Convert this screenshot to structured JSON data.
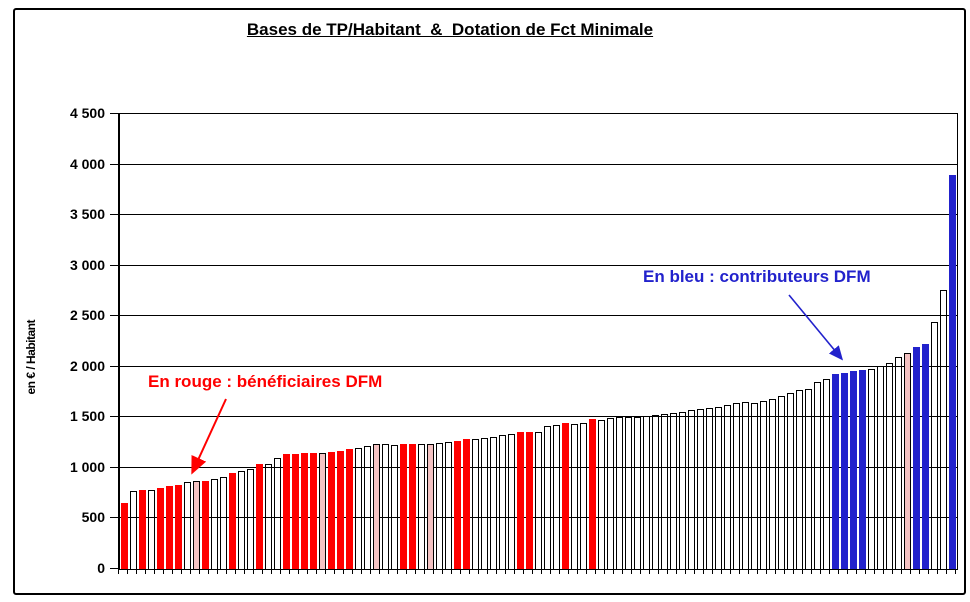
{
  "title": "Bases de TP/Habitant  &  Dotation de Fct Minimale",
  "annotations": {
    "red_label": "En rouge : bénéficiaires DFM",
    "blue_label": "En bleu : contributeurs DFM"
  },
  "colors": {
    "red": "#FF0000",
    "blue": "#2222CC",
    "pink": "#F4C2C2",
    "outline": "#000000",
    "grid": "#000000"
  },
  "chart_data": {
    "type": "bar",
    "title": "Bases de TP/Habitant  &  Dotation de Fct Minimale",
    "xlabel": "",
    "ylabel": "en € / Habitant",
    "ylim": [
      0,
      4500
    ],
    "ytick_step": 500,
    "yticks": [
      "0",
      "500",
      "1 000",
      "1 500",
      "2 000",
      "2 500",
      "3 000",
      "3 500",
      "4 000",
      "4 500"
    ],
    "grid": true,
    "legend_position": "none",
    "color_meaning": {
      "r": "bénéficiaire DFM (rouge)",
      "b": "contributeur DFM (bleu)",
      "w": "commune non colorée",
      "p": "barre rose pâle"
    },
    "bars": [
      [
        650,
        "r"
      ],
      [
        770,
        "w"
      ],
      [
        780,
        "r"
      ],
      [
        785,
        "w"
      ],
      [
        805,
        "r"
      ],
      [
        820,
        "r"
      ],
      [
        835,
        "r"
      ],
      [
        860,
        "w"
      ],
      [
        870,
        "p"
      ],
      [
        875,
        "r"
      ],
      [
        895,
        "w"
      ],
      [
        910,
        "w"
      ],
      [
        945,
        "r"
      ],
      [
        965,
        "w"
      ],
      [
        990,
        "w"
      ],
      [
        1040,
        "r"
      ],
      [
        1035,
        "w"
      ],
      [
        1100,
        "w"
      ],
      [
        1140,
        "r"
      ],
      [
        1140,
        "r"
      ],
      [
        1145,
        "r"
      ],
      [
        1145,
        "r"
      ],
      [
        1150,
        "p"
      ],
      [
        1155,
        "r"
      ],
      [
        1170,
        "r"
      ],
      [
        1185,
        "r"
      ],
      [
        1195,
        "w"
      ],
      [
        1215,
        "w"
      ],
      [
        1235,
        "p"
      ],
      [
        1240,
        "w"
      ],
      [
        1230,
        "w"
      ],
      [
        1235,
        "r"
      ],
      [
        1235,
        "r"
      ],
      [
        1240,
        "w"
      ],
      [
        1235,
        "p"
      ],
      [
        1250,
        "w"
      ],
      [
        1260,
        "w"
      ],
      [
        1270,
        "r"
      ],
      [
        1290,
        "r"
      ],
      [
        1290,
        "w"
      ],
      [
        1300,
        "w"
      ],
      [
        1310,
        "w"
      ],
      [
        1330,
        "w"
      ],
      [
        1340,
        "w"
      ],
      [
        1360,
        "r"
      ],
      [
        1360,
        "r"
      ],
      [
        1355,
        "w"
      ],
      [
        1415,
        "w"
      ],
      [
        1420,
        "w"
      ],
      [
        1440,
        "r"
      ],
      [
        1430,
        "w"
      ],
      [
        1440,
        "w"
      ],
      [
        1480,
        "r"
      ],
      [
        1470,
        "w"
      ],
      [
        1490,
        "w"
      ],
      [
        1500,
        "w"
      ],
      [
        1500,
        "w"
      ],
      [
        1505,
        "w"
      ],
      [
        1510,
        "w"
      ],
      [
        1520,
        "w"
      ],
      [
        1530,
        "w"
      ],
      [
        1540,
        "w"
      ],
      [
        1550,
        "w"
      ],
      [
        1570,
        "w"
      ],
      [
        1580,
        "w"
      ],
      [
        1590,
        "w"
      ],
      [
        1600,
        "w"
      ],
      [
        1620,
        "w"
      ],
      [
        1640,
        "w"
      ],
      [
        1650,
        "w"
      ],
      [
        1645,
        "w"
      ],
      [
        1660,
        "w"
      ],
      [
        1680,
        "w"
      ],
      [
        1710,
        "w"
      ],
      [
        1740,
        "w"
      ],
      [
        1770,
        "w"
      ],
      [
        1780,
        "w"
      ],
      [
        1850,
        "w"
      ],
      [
        1880,
        "w"
      ],
      [
        1930,
        "b"
      ],
      [
        1940,
        "b"
      ],
      [
        1960,
        "b"
      ],
      [
        1970,
        "b"
      ],
      [
        1980,
        "w"
      ],
      [
        2010,
        "w"
      ],
      [
        2040,
        "w"
      ],
      [
        2100,
        "w"
      ],
      [
        2140,
        "p"
      ],
      [
        2200,
        "b"
      ],
      [
        2230,
        "b"
      ],
      [
        2440,
        "w"
      ],
      [
        2760,
        "w"
      ],
      [
        3900,
        "b"
      ]
    ]
  }
}
